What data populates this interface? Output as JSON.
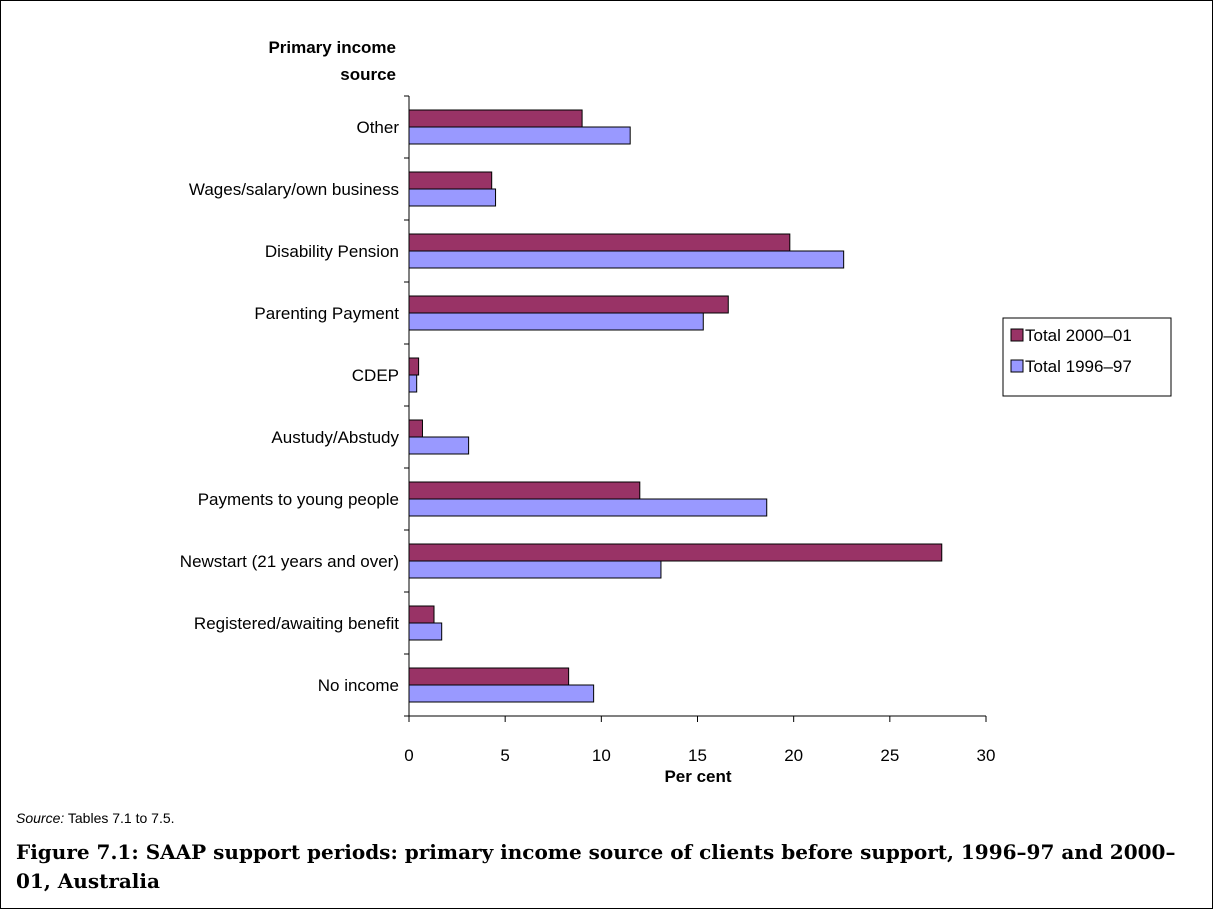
{
  "chart_data": {
    "type": "bar",
    "orientation": "horizontal",
    "y_axis_title": "Primary income source",
    "xlabel": "Per cent",
    "xlim": [
      0,
      30
    ],
    "xticks": [
      0,
      5,
      10,
      15,
      20,
      25,
      30
    ],
    "categories": [
      "Other",
      "Wages/salary/own business",
      "Disability Pension",
      "Parenting Payment",
      "CDEP",
      "Austudy/Abstudy",
      "Payments to young people",
      "Newstart (21 years and over)",
      "Registered/awaiting benefit",
      "No income"
    ],
    "series": [
      {
        "name": "Total 2000–01",
        "color": "#993366",
        "values": [
          9.0,
          4.3,
          19.8,
          16.6,
          0.5,
          0.7,
          12.0,
          27.7,
          1.3,
          8.3
        ]
      },
      {
        "name": "Total 1996–97",
        "color": "#9999FF",
        "values": [
          11.5,
          4.5,
          22.6,
          15.3,
          0.4,
          3.1,
          18.6,
          13.1,
          1.7,
          9.6
        ]
      }
    ],
    "legend_position": "right",
    "grid": false
  },
  "source": {
    "label": "Source:",
    "text": " Tables 7.1 to 7.5."
  },
  "caption": "Figure 7.1: SAAP support periods: primary income source of clients before support, 1996–97 and 2000–01, Australia"
}
